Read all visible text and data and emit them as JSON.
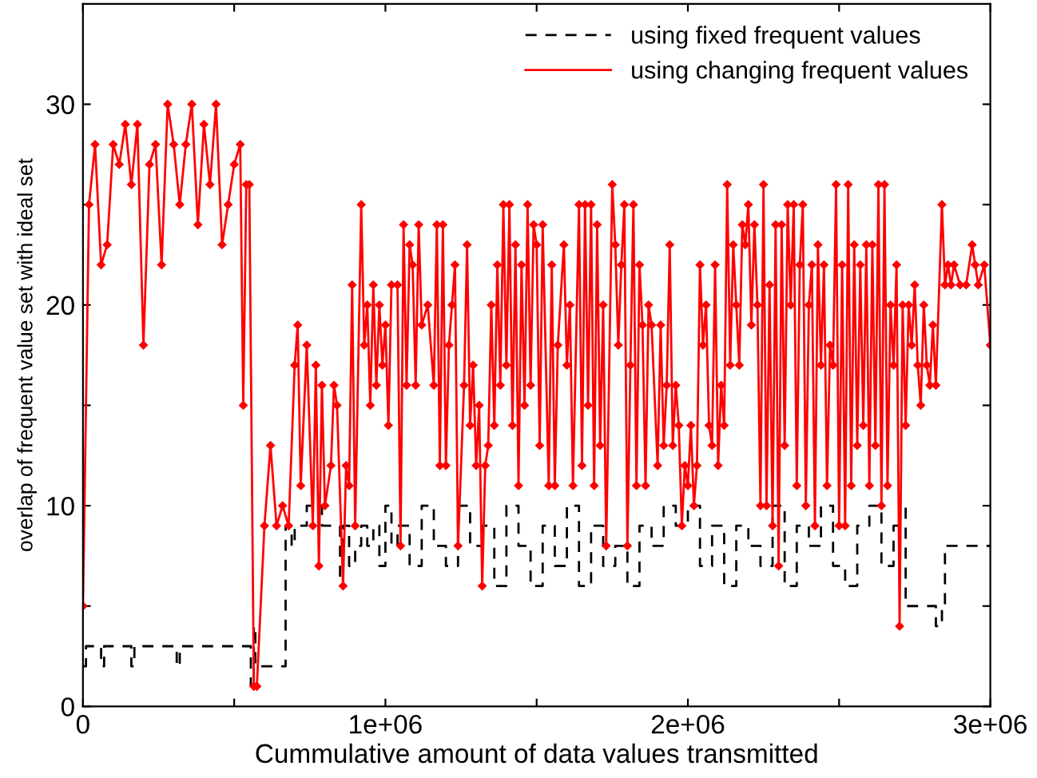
{
  "chart_data": {
    "type": "line",
    "xlabel": "Cummulative amount of data values transmitted",
    "ylabel": "overlap of frequent value set with ideal set",
    "xlim": [
      0,
      3000000
    ],
    "ylim": [
      0,
      35
    ],
    "xticks": [
      0,
      {
        "value": 500000,
        "label": null
      },
      {
        "value": 1000000,
        "label": "1e+06"
      },
      {
        "value": 1500000,
        "label": null
      },
      {
        "value": 2000000,
        "label": "2e+06"
      },
      {
        "value": 2500000,
        "label": null
      },
      {
        "value": 3000000,
        "label": "3e+06"
      }
    ],
    "yticks": [
      0,
      {
        "value": 5,
        "label": null
      },
      10,
      {
        "value": 15,
        "label": null
      },
      20,
      {
        "value": 25,
        "label": null
      },
      30
    ],
    "grid": false,
    "legend": "top right",
    "series": [
      {
        "name": "using fixed frequent values",
        "type": "step",
        "color": "#000000",
        "line_style": "dashed",
        "marker": "none",
        "x": [
          0,
          10000,
          50000,
          60000,
          70000,
          150000,
          160000,
          170000,
          300000,
          310000,
          320000,
          550000,
          555000,
          565000,
          570000,
          660000,
          670000,
          690000,
          700000,
          740000,
          780000,
          790000,
          820000,
          850000,
          860000,
          880000,
          900000,
          920000,
          940000,
          960000,
          980000,
          1000000,
          1020000,
          1040000,
          1080000,
          1120000,
          1160000,
          1200000,
          1240000,
          1280000,
          1320000,
          1360000,
          1400000,
          1440000,
          1480000,
          1520000,
          1560000,
          1600000,
          1640000,
          1680000,
          1720000,
          1760000,
          1800000,
          1840000,
          1880000,
          1920000,
          1960000,
          2000000,
          2040000,
          2080000,
          2120000,
          2160000,
          2200000,
          2240000,
          2280000,
          2320000,
          2360000,
          2400000,
          2440000,
          2480000,
          2520000,
          2560000,
          2600000,
          2640000,
          2680000,
          2700000,
          2720000,
          2800000,
          2820000,
          2840000,
          2850000,
          3000000
        ],
        "values": [
          2,
          3,
          3,
          2,
          3,
          3,
          2,
          3,
          3,
          2,
          3,
          3,
          1,
          4,
          2,
          2,
          9,
          8,
          9,
          10,
          10,
          9,
          9,
          6,
          9,
          7,
          8,
          9,
          8,
          9,
          7,
          10,
          8,
          9,
          7,
          10,
          8,
          7,
          10,
          8,
          9,
          6,
          10,
          8,
          6,
          9,
          7,
          10,
          6,
          9,
          7,
          8,
          6,
          9,
          8,
          10,
          9,
          10,
          7,
          9,
          6,
          9,
          8,
          7,
          10,
          6,
          9,
          8,
          10,
          7,
          6,
          9,
          10,
          7,
          9,
          10,
          5,
          5,
          4,
          5,
          8,
          8
        ]
      },
      {
        "name": "using changing frequent values",
        "color": "#ff0000",
        "line_style": "solid",
        "marker": "diamond",
        "x": [
          0,
          20000,
          40000,
          60000,
          80000,
          100000,
          120000,
          140000,
          160000,
          180000,
          200000,
          220000,
          240000,
          260000,
          280000,
          300000,
          320000,
          340000,
          360000,
          380000,
          400000,
          420000,
          440000,
          460000,
          480000,
          500000,
          520000,
          530000,
          540000,
          550000,
          565000,
          575000,
          600000,
          620000,
          640000,
          660000,
          680000,
          700000,
          710000,
          720000,
          740000,
          760000,
          770000,
          780000,
          790000,
          800000,
          820000,
          830000,
          840000,
          860000,
          870000,
          880000,
          890000,
          900000,
          920000,
          930000,
          940000,
          950000,
          960000,
          970000,
          980000,
          990000,
          1000000,
          1010000,
          1020000,
          1040000,
          1050000,
          1060000,
          1070000,
          1080000,
          1090000,
          1100000,
          1110000,
          1120000,
          1140000,
          1160000,
          1170000,
          1180000,
          1190000,
          1200000,
          1210000,
          1220000,
          1230000,
          1240000,
          1260000,
          1270000,
          1280000,
          1290000,
          1300000,
          1310000,
          1320000,
          1330000,
          1340000,
          1350000,
          1360000,
          1370000,
          1380000,
          1390000,
          1400000,
          1410000,
          1420000,
          1430000,
          1440000,
          1450000,
          1460000,
          1470000,
          1480000,
          1490000,
          1500000,
          1510000,
          1520000,
          1540000,
          1550000,
          1560000,
          1570000,
          1590000,
          1600000,
          1610000,
          1620000,
          1640000,
          1650000,
          1660000,
          1670000,
          1680000,
          1690000,
          1700000,
          1710000,
          1720000,
          1730000,
          1750000,
          1760000,
          1770000,
          1780000,
          1790000,
          1800000,
          1810000,
          1820000,
          1830000,
          1840000,
          1850000,
          1860000,
          1870000,
          1880000,
          1900000,
          1910000,
          1920000,
          1930000,
          1940000,
          1950000,
          1960000,
          1970000,
          1980000,
          1990000,
          2000000,
          2010000,
          2020000,
          2030000,
          2040000,
          2050000,
          2060000,
          2070000,
          2080000,
          2090000,
          2100000,
          2110000,
          2120000,
          2130000,
          2140000,
          2150000,
          2160000,
          2170000,
          2180000,
          2190000,
          2200000,
          2210000,
          2220000,
          2230000,
          2240000,
          2250000,
          2260000,
          2270000,
          2280000,
          2290000,
          2300000,
          2310000,
          2320000,
          2330000,
          2340000,
          2350000,
          2360000,
          2370000,
          2380000,
          2390000,
          2400000,
          2410000,
          2420000,
          2430000,
          2440000,
          2450000,
          2460000,
          2470000,
          2480000,
          2490000,
          2500000,
          2510000,
          2520000,
          2530000,
          2540000,
          2550000,
          2560000,
          2570000,
          2580000,
          2590000,
          2600000,
          2610000,
          2620000,
          2630000,
          2640000,
          2650000,
          2660000,
          2670000,
          2680000,
          2690000,
          2700000,
          2710000,
          2720000,
          2730000,
          2740000,
          2750000,
          2760000,
          2770000,
          2780000,
          2790000,
          2800000,
          2810000,
          2820000,
          2840000,
          2850000,
          2860000,
          2870000,
          2880000,
          2900000,
          2920000,
          2940000,
          2950000,
          2960000,
          2980000,
          3000000
        ],
        "values": [
          5,
          25,
          28,
          22,
          23,
          28,
          27,
          29,
          26,
          29,
          18,
          27,
          28,
          22,
          30,
          28,
          25,
          28,
          30,
          24,
          29,
          26,
          30,
          23,
          25,
          27,
          28,
          15,
          26,
          26,
          1,
          1,
          9,
          13,
          9,
          10,
          9,
          17,
          19,
          11,
          18,
          9,
          17,
          7,
          16,
          10,
          12,
          16,
          15,
          6,
          12,
          11,
          21,
          9,
          25,
          18,
          20,
          15,
          21,
          16,
          20,
          17,
          19,
          14,
          21,
          21,
          8,
          24,
          16,
          23,
          22,
          16,
          24,
          19,
          20,
          16,
          24,
          12,
          24,
          12,
          18,
          20,
          22,
          8,
          16,
          23,
          14,
          17,
          12,
          15,
          6,
          12,
          13,
          20,
          14,
          22,
          16,
          25,
          17,
          25,
          14,
          23,
          11,
          22,
          15,
          25,
          16,
          24,
          23,
          13,
          24,
          11,
          22,
          11,
          18,
          23,
          17,
          20,
          11,
          25,
          12,
          25,
          15,
          25,
          11,
          24,
          13,
          20,
          8,
          26,
          23,
          18,
          22,
          25,
          8,
          17,
          25,
          11,
          22,
          19,
          11,
          20,
          19,
          12,
          19,
          13,
          16,
          23,
          13,
          16,
          14,
          9,
          12,
          11,
          14,
          10,
          12,
          22,
          18,
          20,
          14,
          13,
          22,
          12,
          16,
          14,
          26,
          17,
          23,
          20,
          17,
          24,
          23,
          25,
          19,
          24,
          20,
          10,
          26,
          10,
          21,
          9,
          24,
          7,
          24,
          13,
          25,
          20,
          25,
          11,
          22,
          25,
          10,
          20,
          22,
          9,
          23,
          17,
          22,
          11,
          18,
          17,
          26,
          9,
          22,
          9,
          26,
          11,
          23,
          13,
          22,
          14,
          23,
          11,
          23,
          13,
          26,
          10,
          26,
          11,
          20,
          17,
          22,
          4,
          20,
          14,
          20,
          18,
          21,
          17,
          15,
          20,
          17,
          16,
          19,
          16,
          25,
          21,
          22,
          21,
          22,
          21,
          21,
          23,
          22,
          21,
          22,
          18
        ]
      }
    ]
  }
}
